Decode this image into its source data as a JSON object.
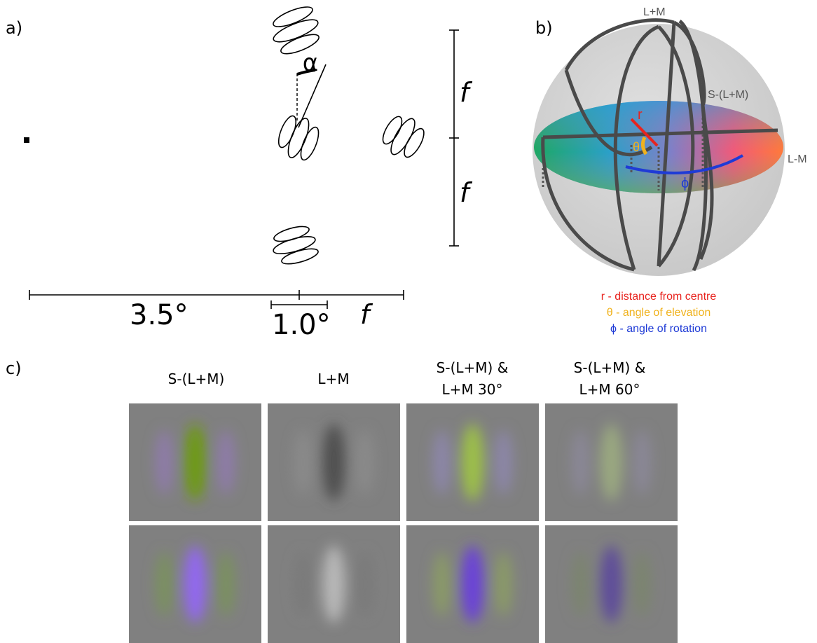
{
  "panel_a": {
    "label": "a)",
    "alpha_symbol": "α",
    "f_upper": "f",
    "f_lower": "f",
    "f_bottom": "f",
    "eccentricity": "3.5°",
    "patch_size": "1.0°"
  },
  "panel_b": {
    "label": "b)",
    "axis_lm": "L+M",
    "axis_s": "S-(L+M)",
    "axis_l_minus_m": "L-M",
    "r_symbol": "r",
    "theta_symbol": "θ",
    "phi_symbol": "ϕ",
    "legend": [
      {
        "text": "r - distance from centre",
        "color": "#e8231e"
      },
      {
        "text": "θ - angle of elevation",
        "color": "#f0b21c"
      },
      {
        "text": "ϕ - angle of rotation",
        "color": "#1f3bd6"
      }
    ]
  },
  "panel_c": {
    "label": "c)",
    "columns": [
      {
        "line1": "S-(L+M)",
        "line2": ""
      },
      {
        "line1": "L+M",
        "line2": ""
      },
      {
        "line1": "S-(L+M) &",
        "line2": "L+M 30°"
      },
      {
        "line1": "S-(L+M) &",
        "line2": "L+M 60°"
      }
    ],
    "tile_colors": {
      "background": "#808080",
      "row1_center": [
        "#6e9a14",
        "#505050",
        "#9cbf4a",
        "#9aa880"
      ],
      "row1_flank": [
        "#8e7ca8",
        "#8a8a8a",
        "#8c86a8",
        "#8a8796"
      ],
      "row2_center": [
        "#9268f0",
        "#b8b8b8",
        "#6a42d8",
        "#5e4e9a"
      ],
      "row2_flank": [
        "#7a9060",
        "#7a7a7a",
        "#8a9a68",
        "#7c8470"
      ]
    }
  }
}
